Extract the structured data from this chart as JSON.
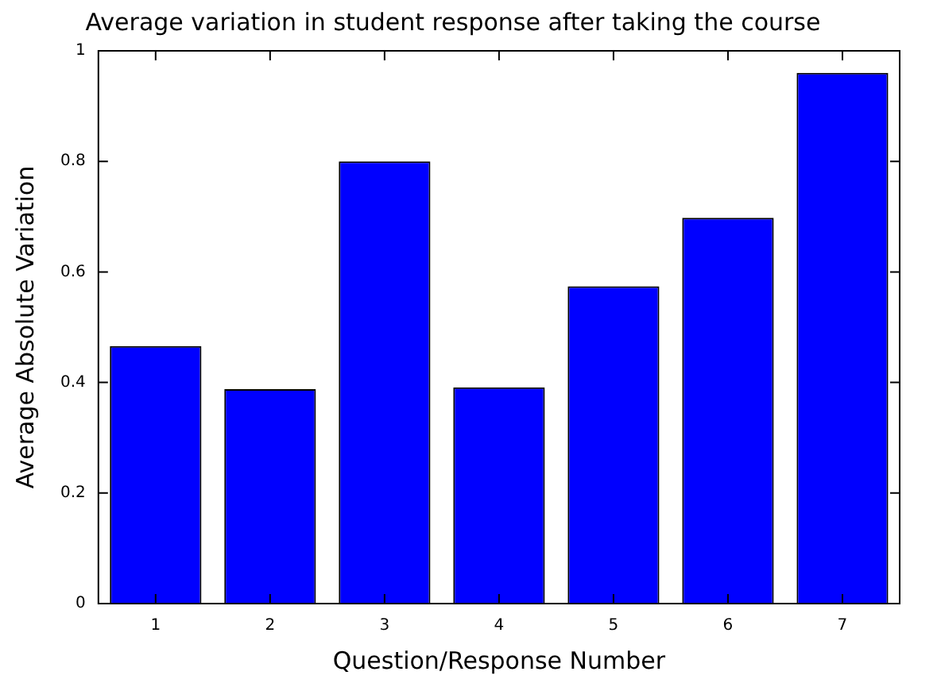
{
  "chart_data": {
    "type": "bar",
    "title": "Average variation in student response after taking the course",
    "xlabel": "Question/Response Number",
    "ylabel": "Average Absolute Variation",
    "categories": [
      "1",
      "2",
      "3",
      "4",
      "5",
      "6",
      "7"
    ],
    "values": [
      0.466,
      0.388,
      0.8,
      0.391,
      0.574,
      0.698,
      0.96
    ],
    "color": "#0000ff",
    "ylim": [
      0,
      1
    ],
    "yticks": [
      0,
      0.2,
      0.4,
      0.6,
      0.8,
      1
    ],
    "grid": false,
    "legend": false
  }
}
